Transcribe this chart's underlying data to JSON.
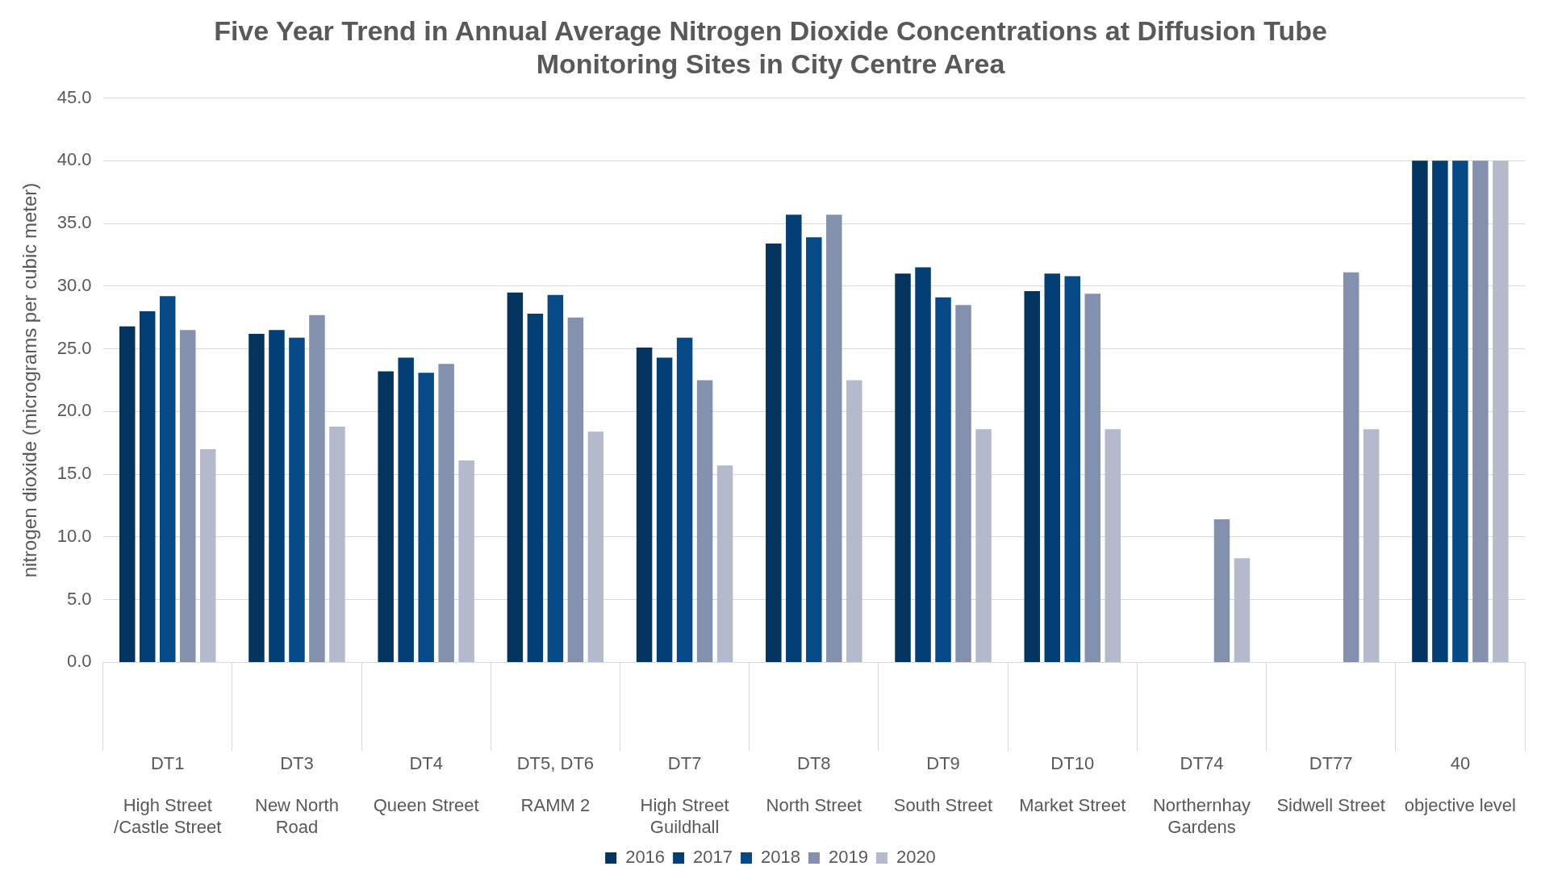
{
  "chart_data": {
    "type": "bar",
    "title": "Five Year Trend in Annual Average Nitrogen Dioxide Concentrations at Diffusion Tube\nMonitoring Sites in City Centre Area",
    "ylabel": "nitrogen dioxide (micrograms per cubic meter)",
    "categories": [
      "DT1\n \nHigh Street\n/Castle Street",
      "DT3\n \nNew North\nRoad",
      "DT4\n \nQueen Street",
      "DT5, DT6\n \nRAMM 2",
      "DT7\n \nHigh Street\nGuildhall",
      "DT8\n \nNorth Street",
      "DT9\n \nSouth Street",
      "DT10\n \nMarket Street",
      "DT74\n \nNorthernhay\nGardens",
      "DT77\n \nSidwell Street",
      "40\n \nobjective level"
    ],
    "series": [
      {
        "name": "2016",
        "color": "#03335f",
        "values": [
          26.8,
          26.2,
          23.2,
          29.5,
          25.1,
          33.4,
          31.0,
          29.6,
          null,
          null,
          40
        ]
      },
      {
        "name": "2017",
        "color": "#033f75",
        "values": [
          28.0,
          26.5,
          24.3,
          27.8,
          24.3,
          35.7,
          31.5,
          31.0,
          null,
          null,
          40
        ]
      },
      {
        "name": "2018",
        "color": "#054a87",
        "values": [
          29.2,
          25.9,
          23.1,
          29.3,
          25.9,
          33.9,
          29.1,
          30.8,
          null,
          null,
          40
        ]
      },
      {
        "name": "2019",
        "color": "#8491ae",
        "values": [
          26.5,
          27.7,
          23.8,
          27.5,
          22.5,
          35.7,
          28.5,
          29.4,
          11.4,
          31.1,
          40
        ]
      },
      {
        "name": "2020",
        "color": "#b4bacb",
        "values": [
          17.0,
          18.8,
          16.1,
          18.4,
          15.7,
          22.5,
          18.6,
          18.6,
          8.3,
          18.6,
          40
        ]
      }
    ],
    "ylim": [
      0,
      45
    ],
    "yticks": [
      {
        "value": 0,
        "label": "0.0"
      },
      {
        "value": 5,
        "label": "5.0"
      },
      {
        "value": 10,
        "label": "10.0"
      },
      {
        "value": 15,
        "label": "15.0"
      },
      {
        "value": 20,
        "label": "20.0"
      },
      {
        "value": 25,
        "label": "25.0"
      },
      {
        "value": 30,
        "label": "30.0"
      },
      {
        "value": 35,
        "label": "35.0"
      },
      {
        "value": 40,
        "label": "40.0"
      },
      {
        "value": 45,
        "label": "45.0"
      }
    ],
    "grid": "y",
    "legend": "bottom"
  }
}
